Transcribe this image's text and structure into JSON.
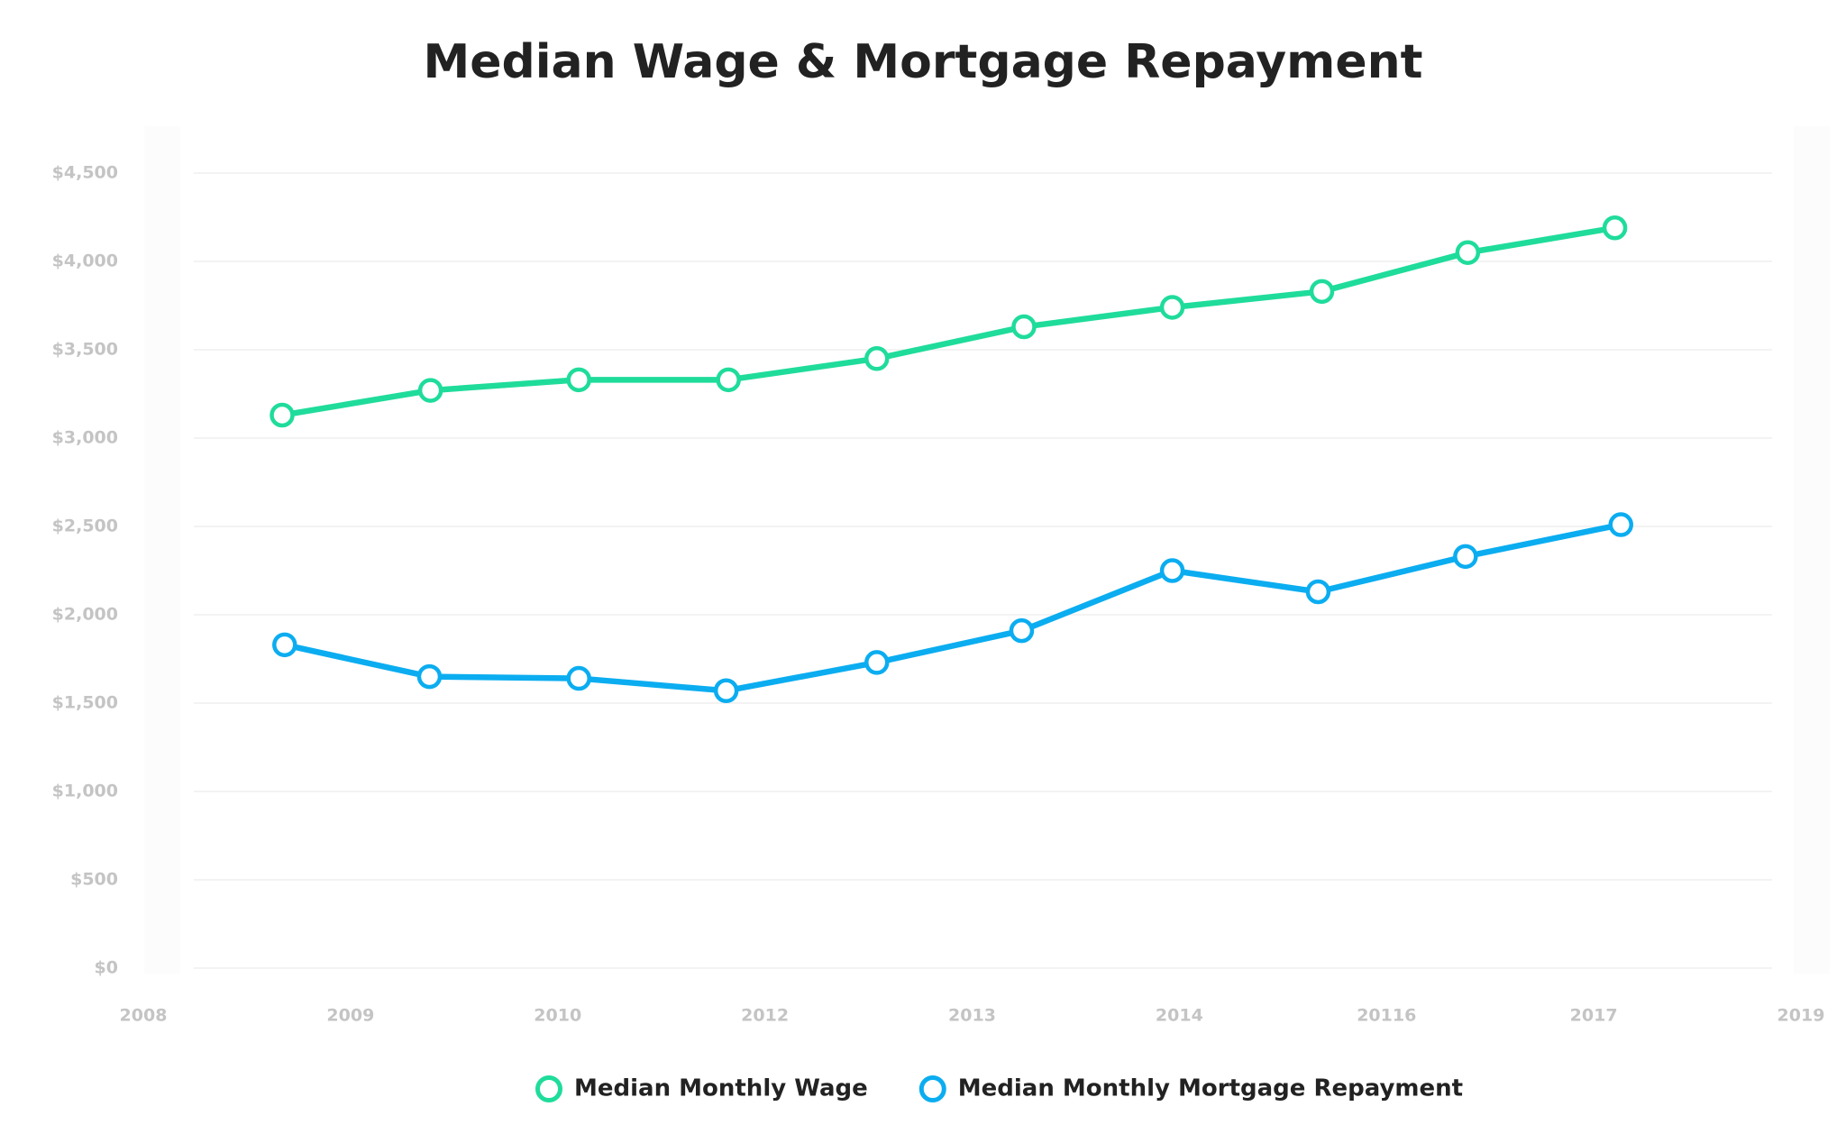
{
  "chart_data": {
    "type": "line",
    "title": "Median Wage & Mortgage Repayment",
    "xlim": [
      0,
      8
    ],
    "xticks": [
      {
        "value": 0,
        "label": "2008"
      },
      {
        "value": 1,
        "label": "2009"
      },
      {
        "value": 2,
        "label": "2010"
      },
      {
        "value": 3,
        "label": "2012"
      },
      {
        "value": 4,
        "label": "2013"
      },
      {
        "value": 5,
        "label": "2014"
      },
      {
        "value": 6,
        "label": "20116"
      },
      {
        "value": 7,
        "label": "2017"
      },
      {
        "value": 8,
        "label": "2019"
      }
    ],
    "ylim": [
      0,
      4500
    ],
    "yticks": [
      {
        "value": 0,
        "label": "$0"
      },
      {
        "value": 500,
        "label": "$500"
      },
      {
        "value": 1000,
        "label": "$1,000"
      },
      {
        "value": 1500,
        "label": "$1,500"
      },
      {
        "value": 2000,
        "label": "$2,000"
      },
      {
        "value": 2500,
        "label": "$2,500"
      },
      {
        "value": 3000,
        "label": "$3,000"
      },
      {
        "value": 3500,
        "label": "$3,500"
      },
      {
        "value": 4000,
        "label": "$4,000"
      },
      {
        "value": 4500,
        "label": "$4,500"
      }
    ],
    "grid": true,
    "legend": "bottom",
    "series": [
      {
        "name": "Median Monthly Wage",
        "color": "#1fdc9b",
        "x": [
          0.67,
          1.386,
          2.102,
          2.824,
          3.54,
          4.25,
          4.966,
          5.688,
          6.392,
          7.102
        ],
        "values": [
          3130,
          3270,
          3330,
          3330,
          3450,
          3630,
          3740,
          3830,
          4050,
          4190
        ]
      },
      {
        "name": "Median Monthly Mortgage Repayment",
        "color": "#0badf0",
        "x": [
          0.682,
          1.381,
          2.102,
          2.813,
          3.54,
          4.239,
          4.966,
          5.67,
          6.381,
          7.131
        ],
        "values": [
          1830,
          1650,
          1640,
          1570,
          1730,
          1910,
          2250,
          2130,
          2330,
          2510
        ]
      }
    ]
  }
}
